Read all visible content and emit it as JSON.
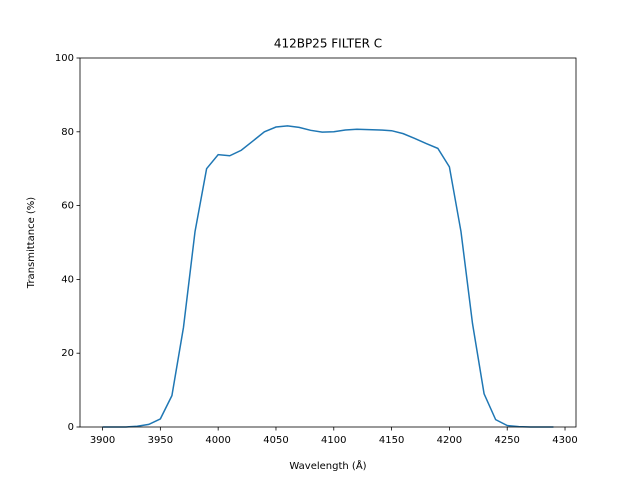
{
  "chart_data": {
    "type": "line",
    "title": "412BP25 FILTER C",
    "x_label": "Wavelength (Å)",
    "y_label": "Transmittance (%)",
    "x": [
      3900,
      3910,
      3920,
      3930,
      3940,
      3950,
      3960,
      3970,
      3980,
      3990,
      4000,
      4010,
      4020,
      4030,
      4040,
      4050,
      4060,
      4070,
      4080,
      4090,
      4100,
      4110,
      4120,
      4130,
      4140,
      4150,
      4160,
      4170,
      4180,
      4190,
      4200,
      4210,
      4220,
      4230,
      4240,
      4250,
      4260,
      4270,
      4280,
      4290
    ],
    "series": [
      {
        "name": "412BP25 FILTER C",
        "color": "#1f77b4",
        "values": [
          0,
          0,
          0,
          0.2,
          0.7,
          2.2,
          8.5,
          27,
          53,
          70,
          73.8,
          73.5,
          75,
          77.5,
          80,
          81.3,
          81.6,
          81.2,
          80.4,
          79.9,
          80,
          80.5,
          80.7,
          80.6,
          80.5,
          80.3,
          79.5,
          78.2,
          76.8,
          75.5,
          70.5,
          53,
          28,
          9,
          2,
          0.4,
          0.1,
          0,
          0,
          0
        ]
      }
    ],
    "xlim": [
      3880.5,
      4309.5
    ],
    "xticks": [
      3900,
      3950,
      4000,
      4050,
      4100,
      4150,
      4200,
      4250,
      4300
    ],
    "ylim": [
      0,
      100
    ],
    "yticks": [
      0,
      20,
      40,
      60,
      80,
      100
    ]
  }
}
